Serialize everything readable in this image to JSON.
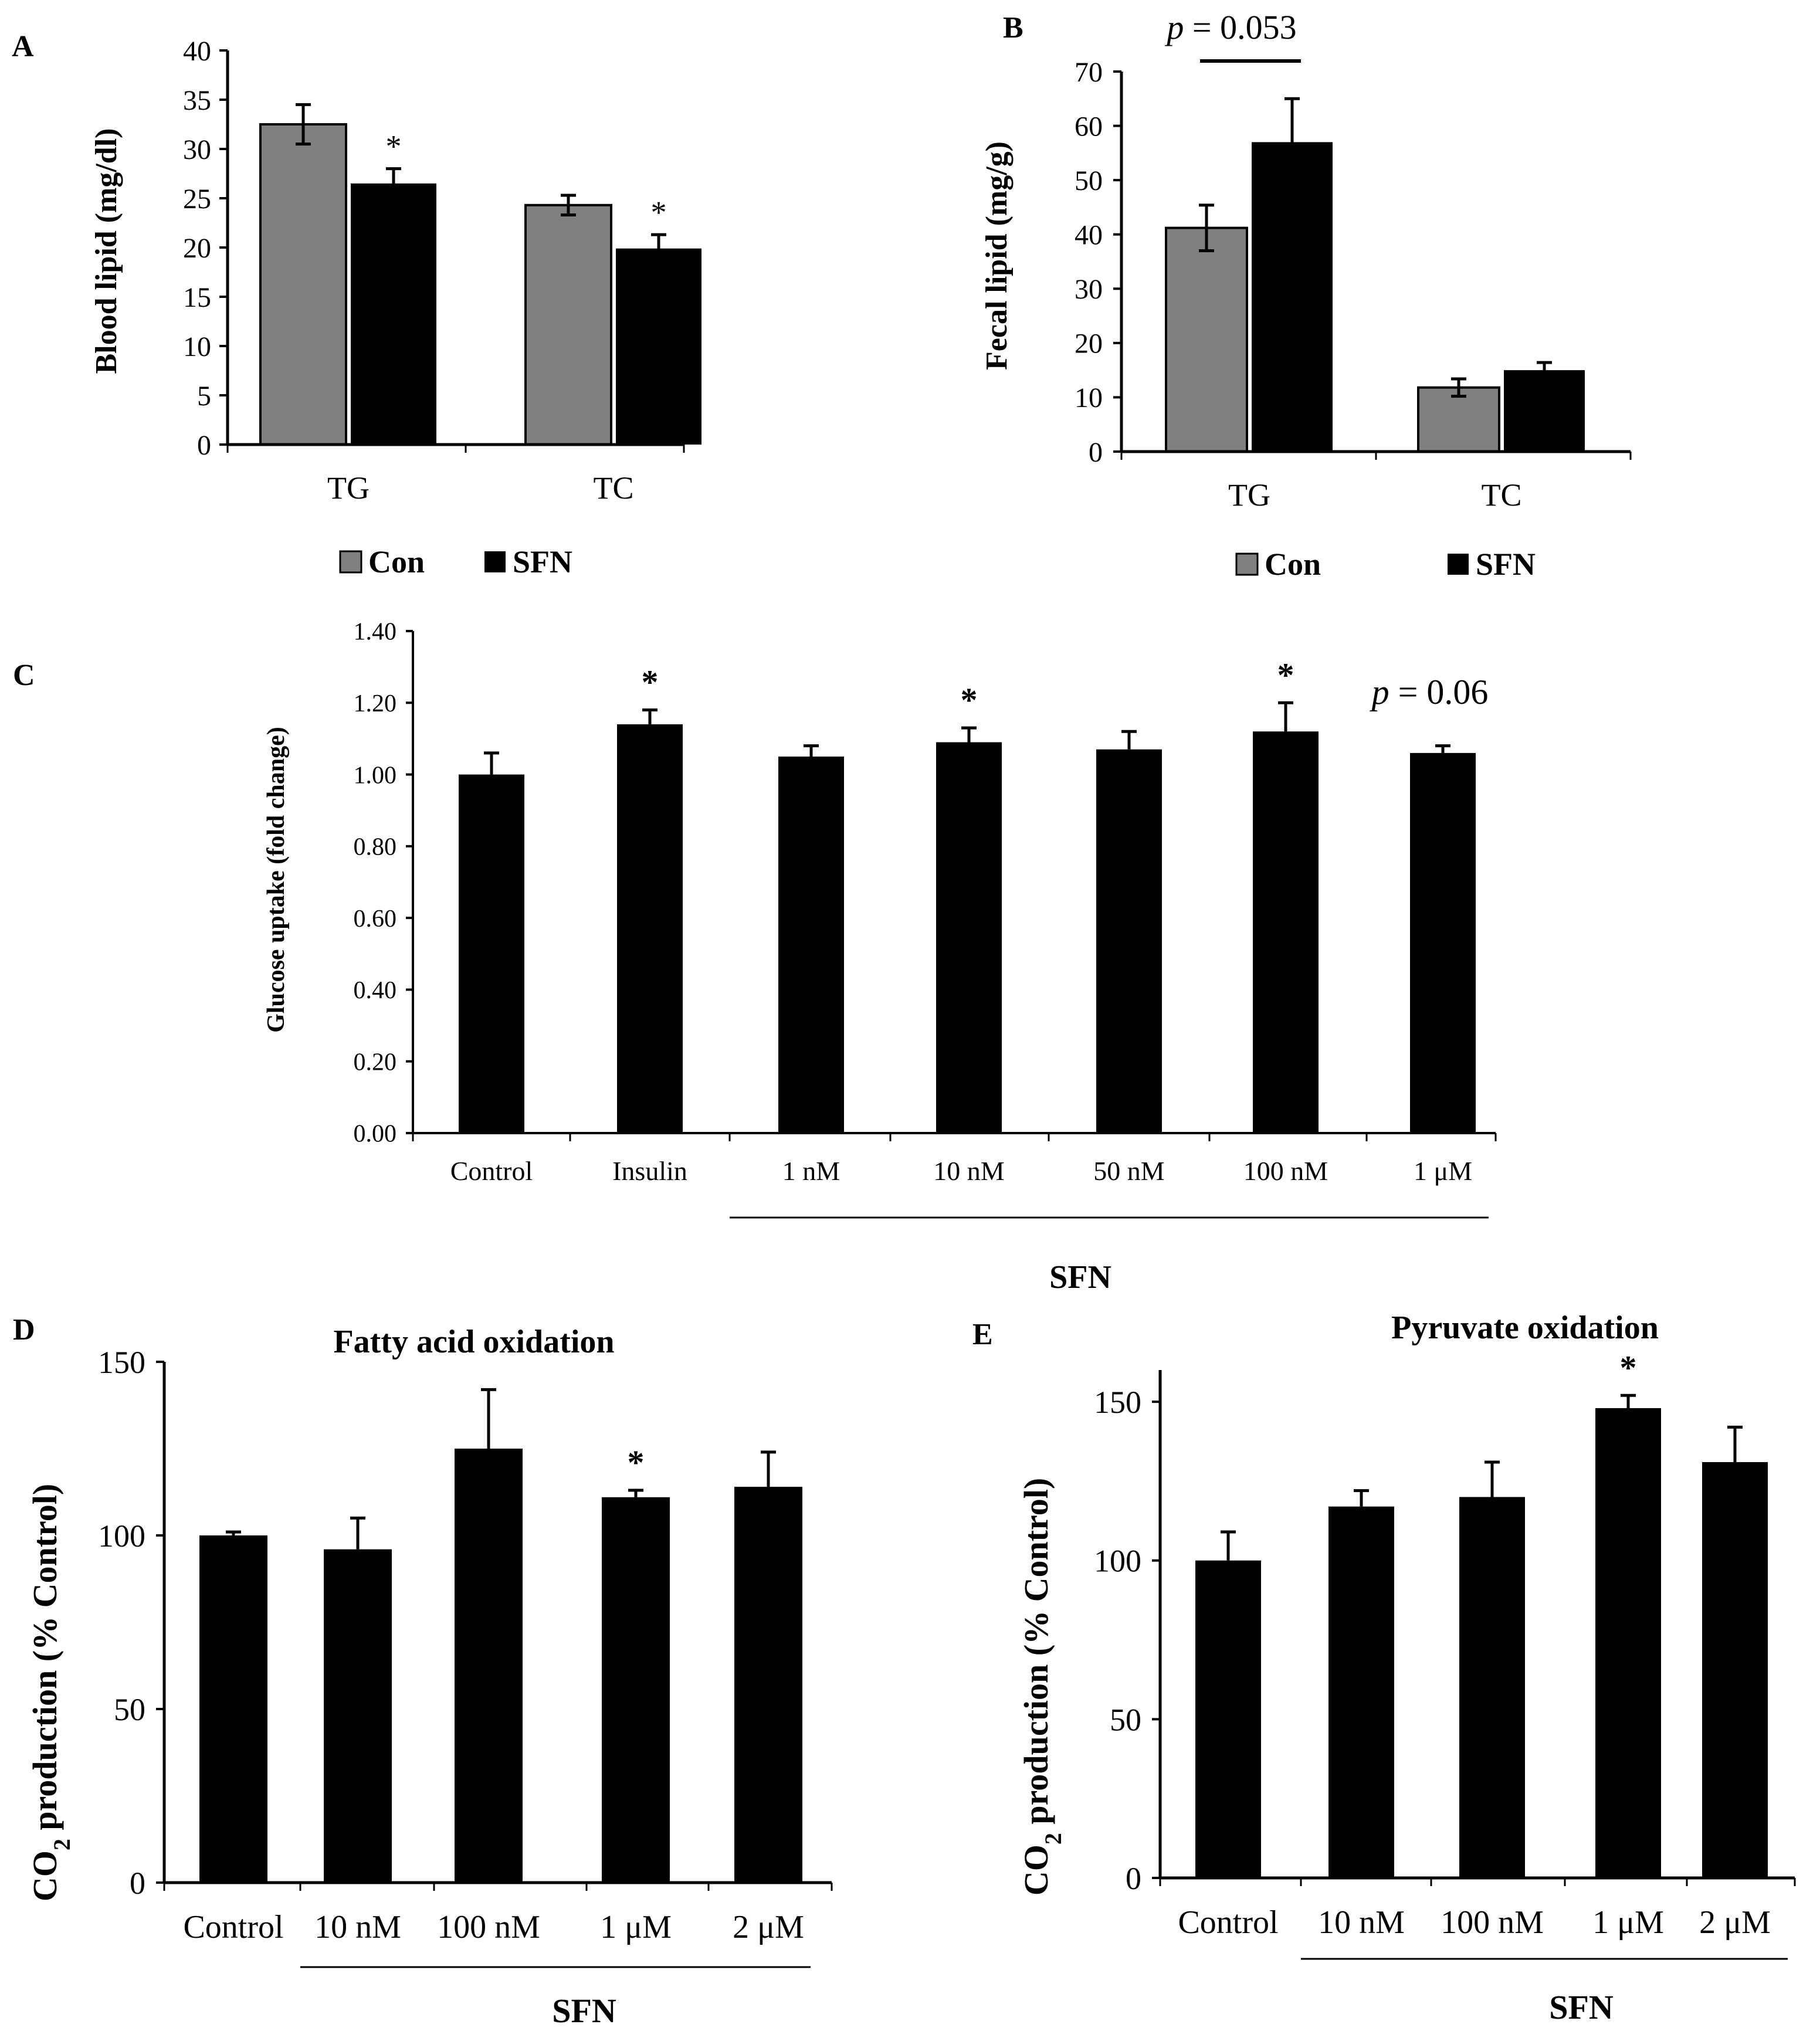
{
  "figure": {
    "panel_labels": [
      "A",
      "B",
      "C",
      "D",
      "E"
    ]
  },
  "legend": {
    "con": "Con",
    "sfn": "SFN",
    "con_color": "#808080",
    "sfn_color": "#000000"
  },
  "chart_data": [
    {
      "id": "A",
      "type": "bar",
      "panel_label": "A",
      "title": "",
      "xlabel": "",
      "ylabel": "Blood lipid (mg/dl)",
      "categories": [
        "TG",
        "TC"
      ],
      "series": [
        {
          "name": "Con",
          "color": "#808080",
          "values": [
            32.5,
            24.3
          ],
          "errors": [
            2.0,
            1.0
          ]
        },
        {
          "name": "SFN",
          "color": "#000000",
          "values": [
            26.5,
            19.9
          ],
          "errors": [
            1.5,
            1.4
          ]
        }
      ],
      "ylim": [
        0,
        40
      ],
      "yticks": [
        "0",
        "5",
        "10",
        "15",
        "20",
        "25",
        "30",
        "35",
        "40"
      ],
      "annotations": [
        {
          "text": "*",
          "category": "TG",
          "series": "SFN"
        },
        {
          "text": "*",
          "category": "TC",
          "series": "SFN"
        }
      ],
      "legend": [
        "Con",
        "SFN"
      ]
    },
    {
      "id": "B",
      "type": "bar",
      "panel_label": "B",
      "title": "",
      "xlabel": "",
      "ylabel": "Fecal lipid (mg/g)",
      "categories": [
        "TG",
        "TC"
      ],
      "series": [
        {
          "name": "Con",
          "color": "#808080",
          "values": [
            41.2,
            11.8
          ],
          "errors": [
            4.2,
            1.6
          ]
        },
        {
          "name": "SFN",
          "color": "#000000",
          "values": [
            57.0,
            15.0
          ],
          "errors": [
            8.0,
            1.4
          ]
        }
      ],
      "ylim": [
        0,
        70
      ],
      "yticks": [
        "0",
        "10",
        "20",
        "30",
        "40",
        "50",
        "60",
        "70"
      ],
      "annotations": [
        {
          "text_italic": "p",
          "text": " = 0.053",
          "bracket": [
            "TG",
            "Con",
            "SFN"
          ]
        }
      ],
      "legend": [
        "Con",
        "SFN"
      ]
    },
    {
      "id": "C",
      "type": "bar",
      "panel_label": "C",
      "title": "",
      "xlabel": "SFN",
      "ylabel": "Glucose uptake (fold change)",
      "categories": [
        "Control",
        "Insulin",
        "1 nM",
        "10 nM",
        "50 nM",
        "100 nM",
        "1 μM"
      ],
      "values": [
        1.0,
        1.14,
        1.05,
        1.09,
        1.07,
        1.12,
        1.06
      ],
      "errors": [
        0.06,
        0.04,
        0.03,
        0.04,
        0.05,
        0.08,
        0.02
      ],
      "ylim": [
        0,
        1.4
      ],
      "yticks": [
        "0.00",
        "0.20",
        "0.40",
        "0.60",
        "0.80",
        "1.00",
        "1.20",
        "1.40"
      ],
      "stars": [
        "",
        "*",
        "",
        "*",
        "",
        "*",
        ""
      ],
      "annotations": [
        {
          "text_italic": "p",
          "text": " = 0.06",
          "category": "1 μM"
        }
      ]
    },
    {
      "id": "D",
      "type": "bar",
      "panel_label": "D",
      "title": "Fatty acid oxidation",
      "xlabel": "SFN",
      "ylabel": "CO2 production (% Control)",
      "categories": [
        "Control",
        "10 nM",
        "100 nM",
        "1 μM",
        "2 μM"
      ],
      "values": [
        100,
        96,
        125,
        111,
        114
      ],
      "errors": [
        1,
        9,
        17,
        2,
        10
      ],
      "ylim": [
        0,
        150
      ],
      "yticks": [
        "0",
        "50",
        "100",
        "150"
      ],
      "stars": [
        "",
        "",
        "",
        "*",
        ""
      ]
    },
    {
      "id": "E",
      "type": "bar",
      "panel_label": "E",
      "title": "Pyruvate oxidation",
      "xlabel": "SFN",
      "ylabel": "CO2 production (% Control)",
      "categories": [
        "Control",
        "10 nM",
        "100 nM",
        "1 μM",
        "2 μM"
      ],
      "values": [
        100,
        117,
        120,
        148,
        131
      ],
      "errors": [
        9,
        5,
        11,
        4,
        11
      ],
      "ylim": [
        0,
        160
      ],
      "yticks": [
        "0",
        "50",
        "100",
        "150"
      ],
      "stars": [
        "",
        "",
        "",
        "*",
        ""
      ]
    }
  ]
}
